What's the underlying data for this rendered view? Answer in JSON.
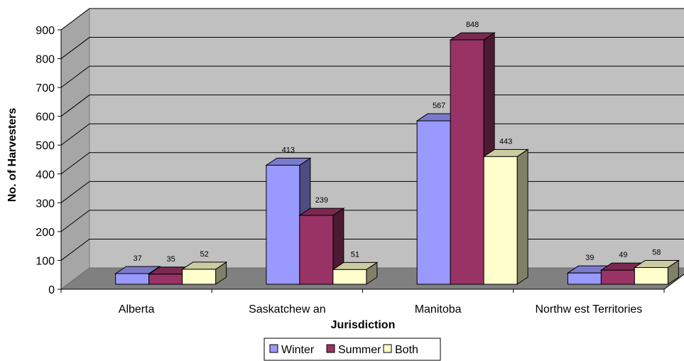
{
  "chart_data": {
    "type": "bar",
    "title": "",
    "xlabel": "Jurisdiction",
    "ylabel": "No. of Harvesters",
    "ylim": [
      0,
      900
    ],
    "yticks": [
      "0",
      "100",
      "200",
      "300",
      "400",
      "500",
      "600",
      "700",
      "800",
      "900"
    ],
    "categories": [
      "Alberta",
      "Saskatchew an",
      "Manitoba",
      "Northw est Territories"
    ],
    "series": [
      {
        "name": "Winter",
        "color": "#9999FF",
        "values": [
          37,
          413,
          567,
          39
        ]
      },
      {
        "name": "Summer",
        "color": "#993366",
        "values": [
          35,
          239,
          848,
          49
        ]
      },
      {
        "name": "Both",
        "color": "#FFFFCC",
        "values": [
          52,
          51,
          443,
          58
        ]
      }
    ],
    "grid": true,
    "legend_position": "bottom",
    "style": "3d-clustered-column"
  }
}
